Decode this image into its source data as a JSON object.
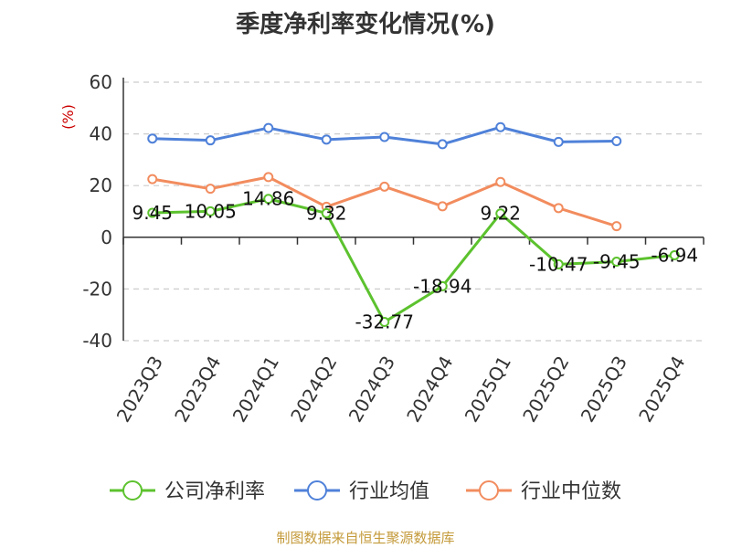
{
  "chart_data": {
    "type": "line",
    "title": "季度净利率变化情况(%)",
    "ylabel": "(%)",
    "ylim": [
      -40,
      60
    ],
    "yticks": [
      60,
      40,
      20,
      0,
      -20,
      -40
    ],
    "grid": true,
    "legend_position": "bottom",
    "categories": [
      "2023Q3",
      "2023Q4",
      "2024Q1",
      "2024Q2",
      "2024Q3",
      "2024Q4",
      "2025Q1",
      "2025Q2",
      "2025Q3",
      "2025Q4"
    ],
    "series": [
      {
        "name": "公司净利率",
        "color": "#5cc22e",
        "values": [
          9.45,
          10.05,
          14.86,
          9.32,
          -32.77,
          -18.94,
          9.22,
          -10.47,
          -9.45,
          -6.94
        ],
        "labels": [
          "9.45",
          "10.05",
          "14.86",
          "9.32",
          "-32.77",
          "-18.94",
          "9.22",
          "-10.47",
          "-9.45",
          "-6.94"
        ],
        "show_labels": true
      },
      {
        "name": "行业均值",
        "color": "#4f81d9",
        "values": [
          38.2,
          37.5,
          42.3,
          37.8,
          38.8,
          36.0,
          42.6,
          36.9,
          37.2,
          null
        ],
        "show_labels": false
      },
      {
        "name": "行业中位数",
        "color": "#f28c5e",
        "values": [
          22.5,
          18.8,
          23.3,
          11.8,
          19.6,
          12.0,
          21.4,
          11.3,
          4.3,
          null
        ],
        "show_labels": false
      }
    ]
  },
  "footer": {
    "source": "制图数据来自恒生聚源数据库"
  }
}
